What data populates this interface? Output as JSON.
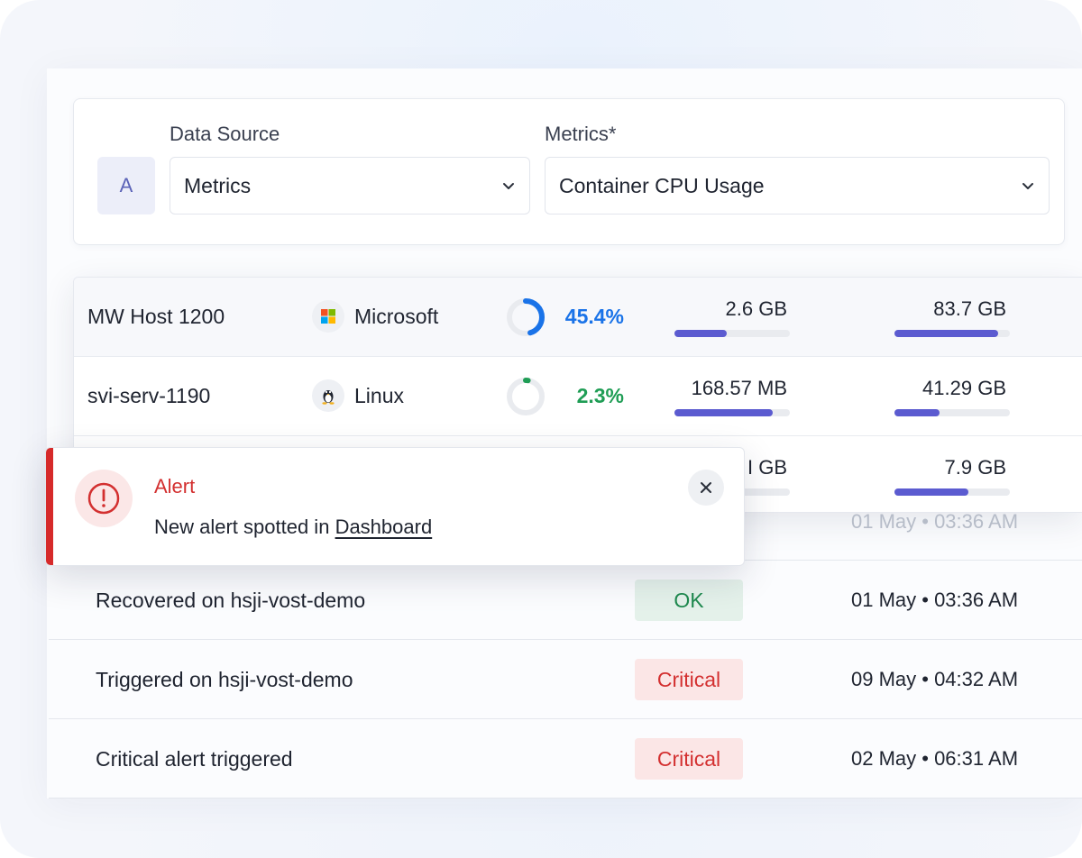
{
  "query": {
    "badge": "A",
    "data_source_label": "Data Source",
    "data_source_value": "Metrics",
    "metrics_label": "Metrics*",
    "metrics_value": "Container CPU Usage"
  },
  "hosts": [
    {
      "name": "MW Host 1200",
      "os": "Microsoft",
      "os_icon": "windows-icon",
      "cpu_pct": "45.4%",
      "cpu_fraction": 0.454,
      "cpu_color": "#1a73e8",
      "mem_value": "2.6 GB",
      "mem_fraction": 0.45,
      "disk_value": "83.7 GB",
      "disk_fraction": 0.9
    },
    {
      "name": "svi-serv-1190",
      "os": "Linux",
      "os_icon": "linux-icon",
      "cpu_pct": "2.3%",
      "cpu_fraction": 0.023,
      "cpu_color": "#1f9d55",
      "mem_value": "168.57 MB",
      "mem_fraction": 0.85,
      "disk_value": "41.29 GB",
      "disk_fraction": 0.39
    },
    {
      "name": "",
      "os": "",
      "os_icon": "",
      "cpu_pct": "",
      "cpu_fraction": 0,
      "cpu_color": "#1a73e8",
      "mem_value": "I GB",
      "mem_fraction": 0.55,
      "disk_value": "7.9 GB",
      "disk_fraction": 0.64
    }
  ],
  "alerts": [
    {
      "title": "",
      "status": "",
      "time": "01 May • 03:36 AM"
    },
    {
      "title": "Recovered on hsji-vost-demo",
      "status": "OK",
      "time": "01 May • 03:36 AM"
    },
    {
      "title": "Triggered on hsji-vost-demo",
      "status": "Critical",
      "time": "09 May • 04:32 AM"
    },
    {
      "title": "Critical alert triggered",
      "status": "Critical",
      "time": "02 May • 06:31 AM"
    }
  ],
  "toast": {
    "title": "Alert",
    "message": "New alert spotted in",
    "link": "Dashboard",
    "icon": "alert-circle-icon",
    "close_icon": "close-icon"
  },
  "colors": {
    "accent_bar": "#5b5bd0",
    "critical": "#d33030",
    "ok": "#1f8a4f"
  }
}
